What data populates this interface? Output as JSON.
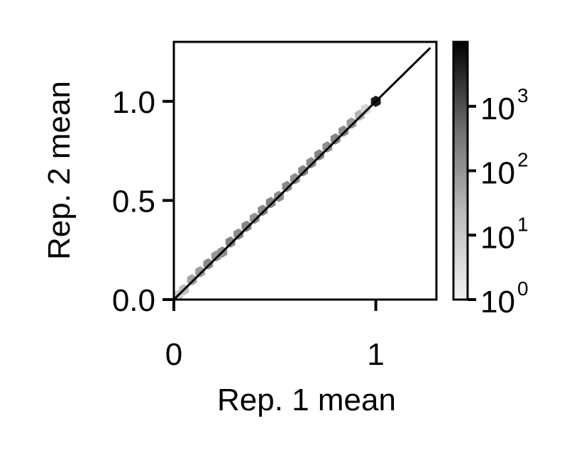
{
  "chart_data": {
    "type": "heatmap",
    "subtype": "hexbin density with diagonal reference line",
    "xlabel": "Rep. 1 mean",
    "ylabel": "Rep. 2 mean",
    "xlim": [
      0,
      1.3
    ],
    "ylim": [
      0,
      1.3
    ],
    "xticks": [
      0,
      1
    ],
    "xtick_labels": [
      "0",
      "1"
    ],
    "yticks": [
      0.0,
      0.5,
      1.0
    ],
    "ytick_labels": [
      "0.0",
      "0.5",
      "1.0"
    ],
    "reference_line": {
      "from": [
        0,
        0
      ],
      "to": [
        1.27,
        1.27
      ],
      "color": "#000000"
    },
    "colorbar": {
      "scale": "log",
      "ticks": [
        1,
        10,
        100,
        1000
      ],
      "tick_labels": [
        {
          "base": "10",
          "exp": "0"
        },
        {
          "base": "10",
          "exp": "1"
        },
        {
          "base": "10",
          "exp": "2"
        },
        {
          "base": "10",
          "exp": "3"
        }
      ],
      "range": [
        1,
        10000
      ],
      "colormap": [
        "#f2f2f2",
        "#bdbdbd",
        "#6e6e6e",
        "#000000"
      ]
    },
    "hexbins": [
      {
        "x": 0.02,
        "y": 0.02,
        "count": 10
      },
      {
        "x": 0.05,
        "y": 0.05,
        "count": 20
      },
      {
        "x": 0.09,
        "y": 0.1,
        "count": 60
      },
      {
        "x": 0.13,
        "y": 0.14,
        "count": 80
      },
      {
        "x": 0.17,
        "y": 0.18,
        "count": 150
      },
      {
        "x": 0.21,
        "y": 0.22,
        "count": 90
      },
      {
        "x": 0.24,
        "y": 0.24,
        "count": 120
      },
      {
        "x": 0.28,
        "y": 0.29,
        "count": 200
      },
      {
        "x": 0.32,
        "y": 0.33,
        "count": 150
      },
      {
        "x": 0.36,
        "y": 0.37,
        "count": 180
      },
      {
        "x": 0.4,
        "y": 0.41,
        "count": 120
      },
      {
        "x": 0.44,
        "y": 0.45,
        "count": 160
      },
      {
        "x": 0.48,
        "y": 0.49,
        "count": 200
      },
      {
        "x": 0.52,
        "y": 0.52,
        "count": 150
      },
      {
        "x": 0.56,
        "y": 0.57,
        "count": 170
      },
      {
        "x": 0.6,
        "y": 0.61,
        "count": 130
      },
      {
        "x": 0.64,
        "y": 0.65,
        "count": 190
      },
      {
        "x": 0.68,
        "y": 0.69,
        "count": 150
      },
      {
        "x": 0.72,
        "y": 0.73,
        "count": 200
      },
      {
        "x": 0.76,
        "y": 0.77,
        "count": 140
      },
      {
        "x": 0.8,
        "y": 0.81,
        "count": 180
      },
      {
        "x": 0.84,
        "y": 0.85,
        "count": 150
      },
      {
        "x": 0.88,
        "y": 0.89,
        "count": 90
      },
      {
        "x": 0.92,
        "y": 0.93,
        "count": 30
      },
      {
        "x": 0.95,
        "y": 0.96,
        "count": 5
      },
      {
        "x": 1.0,
        "y": 1.0,
        "count": 5000
      }
    ]
  }
}
